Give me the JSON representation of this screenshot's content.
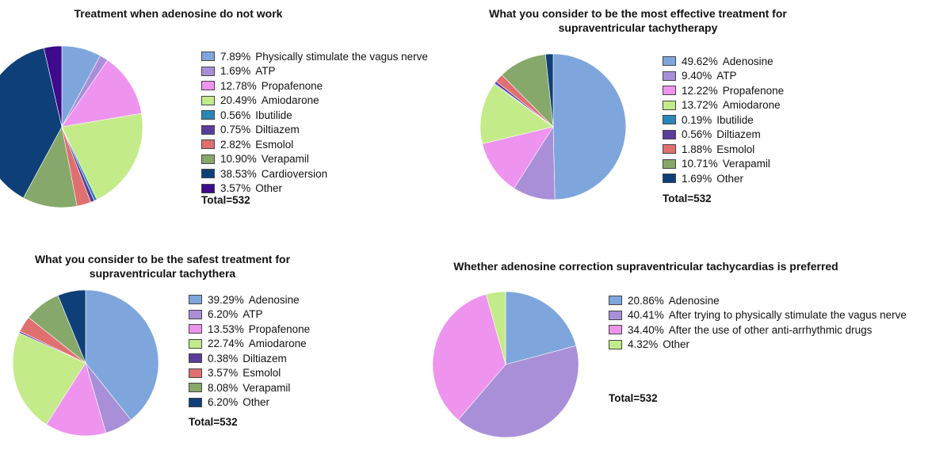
{
  "chart_data": [
    {
      "type": "pie",
      "title": "Treatment when adenosine do not work",
      "total": "Total=532",
      "slices": [
        {
          "label": "Physically stimulate the vagus nerve",
          "value": 7.89,
          "pct_text": "7.89%",
          "color": "#7ea6dc"
        },
        {
          "label": "ATP",
          "value": 1.69,
          "pct_text": "1.69%",
          "color": "#a98fd8"
        },
        {
          "label": "Propafenone",
          "value": 12.78,
          "pct_text": "12.78%",
          "color": "#ee94ee"
        },
        {
          "label": "Amiodarone",
          "value": 20.49,
          "pct_text": "20.49%",
          "color": "#c4eb8a"
        },
        {
          "label": "Ibutilide",
          "value": 0.56,
          "pct_text": "0.56%",
          "color": "#2b86b8"
        },
        {
          "label": "Diltiazem",
          "value": 0.75,
          "pct_text": "0.75%",
          "color": "#5a3c9a"
        },
        {
          "label": "Esmolol",
          "value": 2.82,
          "pct_text": "2.82%",
          "color": "#e07070"
        },
        {
          "label": "Verapamil",
          "value": 10.9,
          "pct_text": "10.90%",
          "color": "#86a86a"
        },
        {
          "label": "Cardioversion",
          "value": 38.53,
          "pct_text": "38.53%",
          "color": "#0f3f78"
        },
        {
          "label": "Other",
          "value": 3.57,
          "pct_text": "3.57%",
          "color": "#3c0a8a"
        }
      ]
    },
    {
      "type": "pie",
      "title": "What you consider to be the most effective treatment for supraventricular tachytherapy",
      "total": "Total=532",
      "slices": [
        {
          "label": "Adenosine",
          "value": 49.62,
          "pct_text": "49.62%",
          "color": "#7ea6dc"
        },
        {
          "label": "ATP",
          "value": 9.4,
          "pct_text": "9.40%",
          "color": "#a98fd8"
        },
        {
          "label": "Propafenone",
          "value": 12.22,
          "pct_text": "12.22%",
          "color": "#ee94ee"
        },
        {
          "label": "Amiodarone",
          "value": 13.72,
          "pct_text": "13.72%",
          "color": "#c4eb8a"
        },
        {
          "label": "Ibutilide",
          "value": 0.19,
          "pct_text": "0.19%",
          "color": "#2b86b8"
        },
        {
          "label": "Diltiazem",
          "value": 0.56,
          "pct_text": "0.56%",
          "color": "#5a3c9a"
        },
        {
          "label": "Esmolol",
          "value": 1.88,
          "pct_text": "1.88%",
          "color": "#e07070"
        },
        {
          "label": "Verapamil",
          "value": 10.71,
          "pct_text": "10.71%",
          "color": "#86a86a"
        },
        {
          "label": "Other",
          "value": 1.69,
          "pct_text": "1.69%",
          "color": "#0f3f78"
        }
      ]
    },
    {
      "type": "pie",
      "title": "What you consider to be the safest treatment for supraventricular tachythera",
      "total": "Total=532",
      "slices": [
        {
          "label": "Adenosine",
          "value": 39.29,
          "pct_text": "39.29%",
          "color": "#7ea6dc"
        },
        {
          "label": "ATP",
          "value": 6.2,
          "pct_text": "6.20%",
          "color": "#a98fd8"
        },
        {
          "label": "Propafenone",
          "value": 13.53,
          "pct_text": "13.53%",
          "color": "#ee94ee"
        },
        {
          "label": "Amiodarone",
          "value": 22.74,
          "pct_text": "22.74%",
          "color": "#c4eb8a"
        },
        {
          "label": "Diltiazem",
          "value": 0.38,
          "pct_text": "0.38%",
          "color": "#5a3c9a"
        },
        {
          "label": "Esmolol",
          "value": 3.57,
          "pct_text": "3.57%",
          "color": "#e07070"
        },
        {
          "label": "Verapamil",
          "value": 8.08,
          "pct_text": "8.08%",
          "color": "#86a86a"
        },
        {
          "label": "Other",
          "value": 6.2,
          "pct_text": "6.20%",
          "color": "#0f3f78"
        }
      ]
    },
    {
      "type": "pie",
      "title": "Whether adenosine correction supraventricular tachycardias is preferred",
      "total": "Total=532",
      "slices": [
        {
          "label": "Adenosine",
          "value": 20.86,
          "pct_text": "20.86%",
          "color": "#7ea6dc"
        },
        {
          "label": "After trying to physically stimulate the vagus nerve",
          "value": 40.41,
          "pct_text": "40.41%",
          "color": "#a98fd8"
        },
        {
          "label": "After the use of other anti-arrhythmic drugs",
          "value": 34.4,
          "pct_text": "34.40%",
          "color": "#ee94ee"
        },
        {
          "label": "Other",
          "value": 4.32,
          "pct_text": "4.32%",
          "color": "#c4eb8a"
        }
      ]
    }
  ]
}
